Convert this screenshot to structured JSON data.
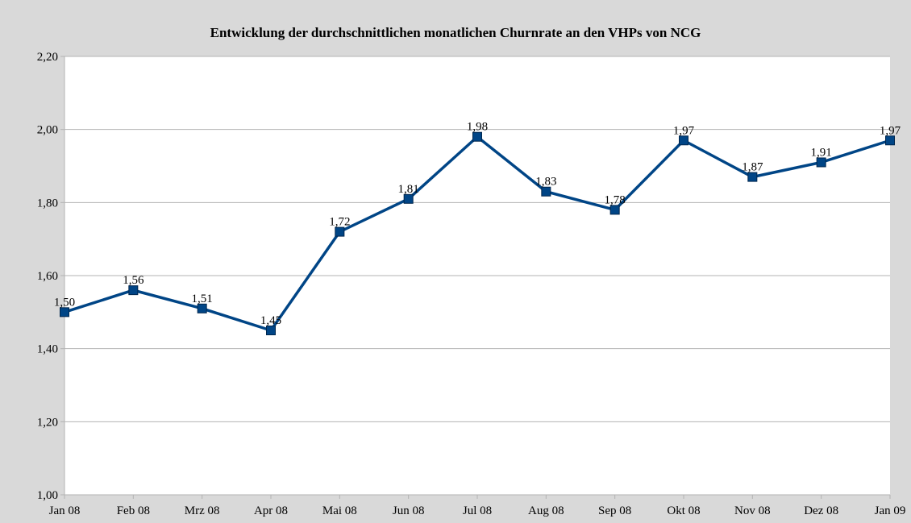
{
  "chart_data": {
    "type": "line",
    "title": "Entwicklung der durchschnittlichen monatlichen Churnrate an den VHPs von NCG",
    "xlabel": "",
    "ylabel": "",
    "categories": [
      "Jan 08",
      "Feb 08",
      "Mrz 08",
      "Apr 08",
      "Mai 08",
      "Jun 08",
      "Jul 08",
      "Aug 08",
      "Sep 08",
      "Okt 08",
      "Nov 08",
      "Dez 08",
      "Jan 09"
    ],
    "series": [
      {
        "values": [
          1.5,
          1.56,
          1.51,
          1.45,
          1.72,
          1.81,
          1.98,
          1.83,
          1.78,
          1.97,
          1.87,
          1.91,
          1.97
        ],
        "labels": [
          "1,50",
          "1,56",
          "1,51",
          "1,45",
          "1,72",
          "1,81",
          "1,98",
          "1,83",
          "1,78",
          "1,97",
          "1,87",
          "1,91",
          "1,97"
        ],
        "color": "#004586"
      }
    ],
    "ylim": [
      1.0,
      2.2
    ],
    "yticks": [
      1.0,
      1.2,
      1.4,
      1.6,
      1.8,
      2.0,
      2.2
    ],
    "ytick_labels": [
      "1,00",
      "1,20",
      "1,40",
      "1,60",
      "1,80",
      "2,00",
      "2,20"
    ],
    "grid": true,
    "legend": "none",
    "plot_background": "#ffffff",
    "chart_background": "#d9d9d9",
    "gridline_color": "#b3b3b3"
  }
}
